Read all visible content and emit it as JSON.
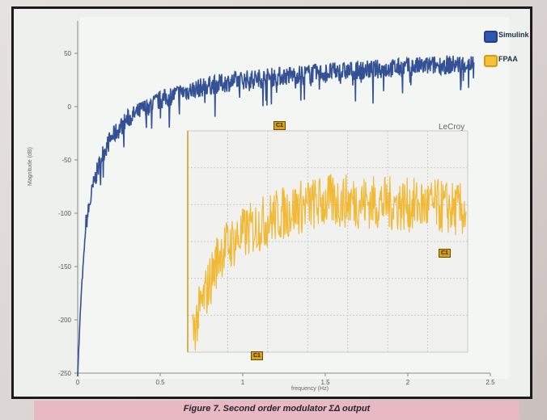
{
  "caption": "Figure 7. Second order modulator ΣΔ output",
  "legend": [
    {
      "label": "Simulink",
      "color": "#1f3f8c"
    },
    {
      "label": "FPAA",
      "color": "#f2b321"
    }
  ],
  "inset": {
    "brand": "LeCroy",
    "tags": [
      "C1",
      "C1",
      "C1"
    ]
  },
  "chart_data": [
    {
      "type": "line",
      "title": "",
      "xlabel": "frequency (Hz)",
      "ylabel": "Magnitude (dB)",
      "xlim": [
        0,
        2.5
      ],
      "ylim": [
        -250,
        50
      ],
      "xticks": [
        "0",
        "0.5",
        "1",
        "1.5",
        "2",
        "2.5"
      ],
      "yticks": [
        "50",
        "0",
        "-50",
        "-100",
        "-150",
        "-200",
        "-250"
      ],
      "grid": false,
      "legend_position": "top-right",
      "series": [
        {
          "name": "Simulink",
          "color": "#1f3f8c",
          "x": [
            0.0,
            0.02,
            0.05,
            0.1,
            0.15,
            0.2,
            0.3,
            0.4,
            0.5,
            0.6,
            0.8,
            1.0,
            1.2,
            1.4,
            1.6,
            1.8,
            2.0,
            2.2,
            2.4
          ],
          "y": [
            -250,
            -180,
            -110,
            -70,
            -45,
            -30,
            -12,
            -2,
            6,
            12,
            20,
            25,
            28,
            31,
            33,
            35,
            37,
            39,
            40
          ]
        }
      ]
    },
    {
      "type": "line",
      "title": "",
      "grid": true,
      "series": [
        {
          "name": "FPAA",
          "color": "#f2b321",
          "x": [
            0,
            0.05,
            0.1,
            0.2,
            0.3,
            0.4,
            0.5,
            0.6,
            0.7,
            0.8,
            0.9,
            1.0
          ],
          "y": [
            -0.9,
            -0.5,
            -0.1,
            0.1,
            0.25,
            0.35,
            0.4,
            0.4,
            0.38,
            0.36,
            0.35,
            0.3
          ]
        }
      ]
    }
  ]
}
